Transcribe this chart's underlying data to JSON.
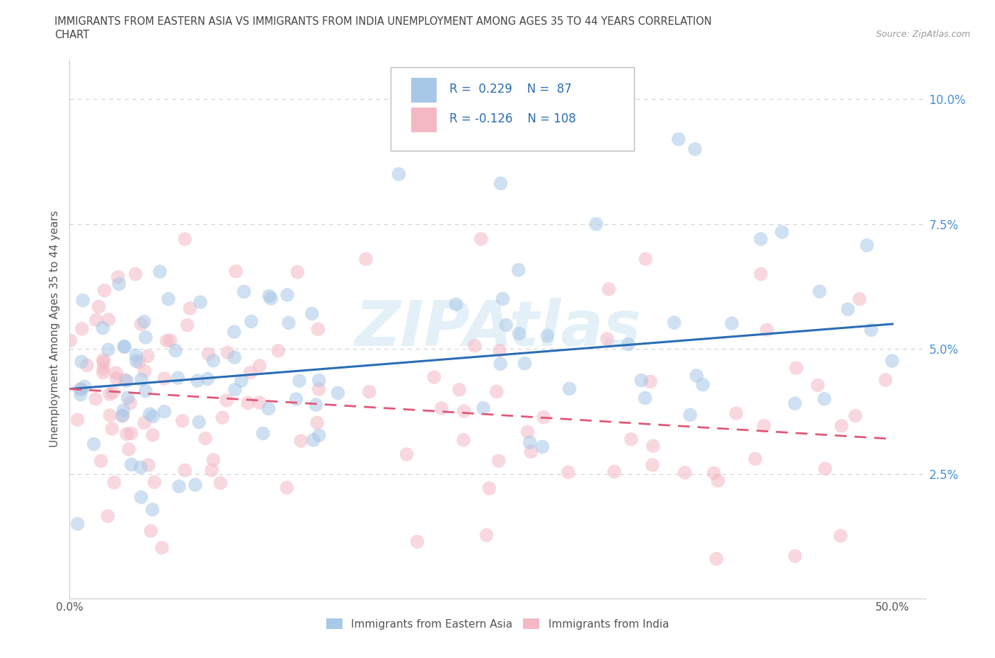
{
  "title_line1": "IMMIGRANTS FROM EASTERN ASIA VS IMMIGRANTS FROM INDIA UNEMPLOYMENT AMONG AGES 35 TO 44 YEARS CORRELATION",
  "title_line2": "CHART",
  "source_text": "Source: ZipAtlas.com",
  "ylabel": "Unemployment Among Ages 35 to 44 years",
  "xlim": [
    0.0,
    0.52
  ],
  "ylim": [
    0.0,
    0.108
  ],
  "xticks": [
    0.0,
    0.1,
    0.2,
    0.3,
    0.4,
    0.5
  ],
  "xticklabels": [
    "0.0%",
    "",
    "",
    "",
    "",
    "50.0%"
  ],
  "yticks": [
    0.0,
    0.025,
    0.05,
    0.075,
    0.1
  ],
  "yticklabels": [
    "",
    "2.5%",
    "5.0%",
    "7.5%",
    "10.0%"
  ],
  "blue_color": "#a8c8e8",
  "pink_color": "#f4b8c4",
  "blue_line_color": "#2a6db5",
  "pink_line_color": "#e05878",
  "R_blue": 0.229,
  "N_blue": 87,
  "R_pink": -0.126,
  "N_pink": 108,
  "legend_label_blue": "Immigrants from Eastern Asia",
  "legend_label_pink": "Immigrants from India",
  "watermark": "ZIPAtlas",
  "title_color": "#444444",
  "axis_color": "#555555",
  "tick_color": "#4a90d9",
  "grid_color": "#d0d0d0",
  "background_color": "#ffffff",
  "blue_trend_start_y": 0.042,
  "blue_trend_end_y": 0.055,
  "pink_trend_start_y": 0.042,
  "pink_trend_end_y": 0.032
}
